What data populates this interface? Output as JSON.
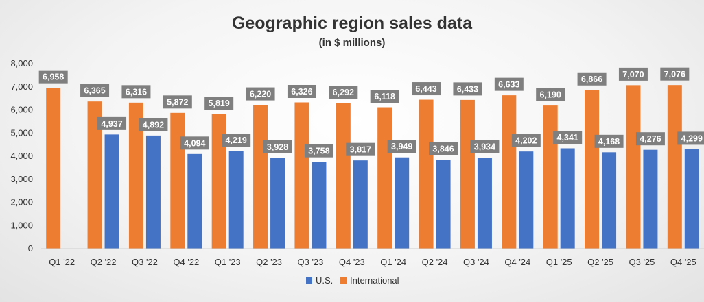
{
  "chart_data": {
    "type": "bar",
    "title": "Geographic region sales data",
    "subtitle": "(in $ millions)",
    "categories": [
      "Q1 '22",
      "Q2 '22",
      "Q3 '22",
      "Q4 '22",
      "Q1 '23",
      "Q2 '23",
      "Q3 '23",
      "Q4 '23",
      "Q1 '24",
      "Q2 '24",
      "Q3 '24",
      "Q4 '24",
      "Q1 '25",
      "Q2 '25",
      "Q3 '25",
      "Q4 '25"
    ],
    "series": [
      {
        "name": "U.S.",
        "color": "#4472c4",
        "values": [
          null,
          4937,
          4892,
          4094,
          4219,
          3928,
          3758,
          3817,
          3949,
          3846,
          3934,
          4202,
          4341,
          4168,
          4276,
          4299
        ],
        "labels": [
          "",
          "4,937",
          "4,892",
          "4,094",
          "4,219",
          "3,928",
          "3,758",
          "3,817",
          "3,949",
          "3,846",
          "3,934",
          "4,202",
          "4,341",
          "4,168",
          "4,276",
          "4,299"
        ]
      },
      {
        "name": "International",
        "color": "#ed7d31",
        "values": [
          6958,
          6365,
          6316,
          5872,
          5819,
          6220,
          6326,
          6292,
          6118,
          6443,
          6433,
          6633,
          6190,
          6866,
          7070,
          7076
        ],
        "labels": [
          "6,958",
          "6,365",
          "6,316",
          "5,872",
          "5,819",
          "6,220",
          "6,326",
          "6,292",
          "6,118",
          "6,443",
          "6,433",
          "6,633",
          "6,190",
          "6,866",
          "7,070",
          "7,076"
        ]
      }
    ],
    "ylim": [
      0,
      8000
    ],
    "yticks": [
      0,
      1000,
      2000,
      3000,
      4000,
      5000,
      6000,
      7000,
      8000
    ],
    "ytick_labels": [
      "0",
      "1,000",
      "2,000",
      "3,000",
      "4,000",
      "5,000",
      "6,000",
      "7,000",
      "8,000"
    ],
    "grid": false,
    "legend_position": "bottom",
    "data_label_bg": "#7f7f7f"
  }
}
